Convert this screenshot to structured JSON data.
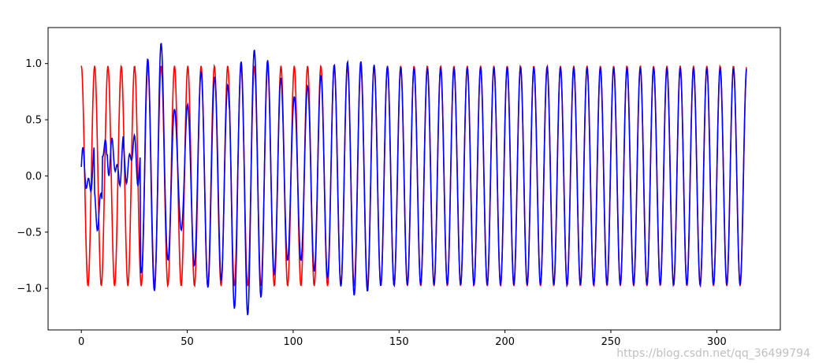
{
  "watermark": "https://blog.csdn.net/qq_36499794",
  "chart_data": {
    "type": "line",
    "title": "",
    "xlabel": "",
    "ylabel": "",
    "xlim": [
      -15.7,
      330
    ],
    "ylim": [
      -1.37,
      1.32
    ],
    "xticks": [
      0,
      50,
      100,
      150,
      200,
      250,
      300
    ],
    "xtick_labels": [
      "0",
      "50",
      "100",
      "150",
      "200",
      "250",
      "300"
    ],
    "yticks": [
      -1.0,
      -0.5,
      0.0,
      0.5,
      1.0
    ],
    "ytick_labels": [
      "−1.0",
      "−0.5",
      "0.0",
      "0.5",
      "1.0"
    ],
    "grid": false,
    "legend": "none",
    "series": [
      {
        "color": "#ff0000",
        "description_formula": "cos(x) for x in [0, 314]",
        "x_start": 0,
        "x_end": 314,
        "step": 0.5,
        "function": "cos",
        "amplitude": 0.98
      },
      {
        "color": "#0000ff",
        "x_start": 0,
        "x_end": 314,
        "function": "predicted",
        "envelope": [
          [
            0,
            0.06,
            0.05
          ],
          [
            10,
            0.3,
            0.3
          ],
          [
            20,
            0.3,
            0.2
          ],
          [
            30,
            1.0,
            1.0
          ],
          [
            36,
            1.18,
            0.9
          ],
          [
            45,
            0.6,
            0.55
          ],
          [
            55,
            0.8,
            0.8
          ],
          [
            65,
            0.9,
            1.0
          ],
          [
            73,
            0.95,
            1.2
          ],
          [
            80,
            1.15,
            1.25
          ],
          [
            90,
            1.0,
            0.9
          ],
          [
            100,
            0.7,
            0.7
          ],
          [
            110,
            0.85,
            0.85
          ],
          [
            120,
            1.0,
            0.95
          ],
          [
            130,
            1.03,
            1.08
          ],
          [
            140,
            0.98,
            0.98
          ],
          [
            160,
            0.96,
            0.97
          ],
          [
            200,
            0.97,
            0.97
          ],
          [
            314,
            0.96,
            0.97
          ]
        ]
      }
    ]
  }
}
